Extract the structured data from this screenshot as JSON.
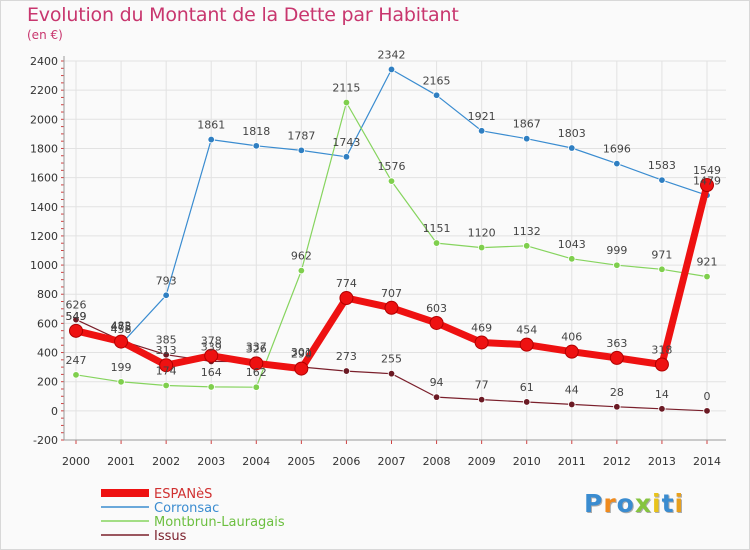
{
  "header": {
    "title": "Evolution du Montant de la Dette par Habitant",
    "subtitle": "(en €)"
  },
  "logo": {
    "text": "Proxiti"
  },
  "colors": {
    "title": "#c8366e",
    "grid": "#e2e2e2",
    "axis": "#999999"
  },
  "chart_data": {
    "type": "line",
    "title": "Evolution du Montant de la Dette par Habitant",
    "subtitle": "(en €)",
    "x": [
      "2000",
      "2001",
      "2002",
      "2003",
      "2004",
      "2005",
      "2006",
      "2007",
      "2008",
      "2009",
      "2010",
      "2011",
      "2012",
      "2013",
      "2014"
    ],
    "ylim": [
      -200,
      2400
    ],
    "yticks": [
      -200,
      0,
      200,
      400,
      600,
      800,
      1000,
      1200,
      1400,
      1600,
      1800,
      2000,
      2200,
      2400
    ],
    "grid": true,
    "legend": "bottom-left",
    "series": [
      {
        "name": "Corronsac",
        "color": "#3a8cd0",
        "point": "#2f7fc2",
        "width": 1.2,
        "values": [
          549,
          458,
          793,
          1861,
          1818,
          1787,
          1743,
          2342,
          2165,
          1921,
          1867,
          1803,
          1696,
          1583,
          1479
        ],
        "labels": [
          "549",
          "458",
          "793",
          "1861",
          "1818",
          "1787",
          "1743",
          "2342",
          "2165",
          "1921",
          "1867",
          "1803",
          "1696",
          "1583",
          "1479"
        ]
      },
      {
        "name": "Montbrun-Lauragais",
        "color": "#86d45e",
        "point": "#7fcf4d",
        "width": 1.2,
        "values": [
          247,
          199,
          174,
          164,
          162,
          962,
          2115,
          1576,
          1151,
          1120,
          1132,
          1043,
          999,
          971,
          921
        ],
        "labels": [
          "247",
          "199",
          "174",
          "164",
          "162",
          "962",
          "2115",
          "1576",
          "1151",
          "1120",
          "1132",
          "1043",
          "999",
          "971",
          "921"
        ]
      },
      {
        "name": "Issus",
        "color": "#7a1f2b",
        "point": "#6b1a24",
        "width": 1.2,
        "values": [
          626,
          482,
          385,
          339,
          337,
          301,
          273,
          255,
          94,
          77,
          61,
          44,
          28,
          14,
          0
        ],
        "labels": [
          "626",
          "482",
          "385",
          "339",
          "337",
          "301",
          "273",
          "255",
          "94",
          "77",
          "61",
          "44",
          "28",
          "14",
          "0"
        ]
      },
      {
        "name": "ESPANèS",
        "color": "#ee1111",
        "point": "#ee1111",
        "width": 7,
        "values": [
          549,
          475,
          313,
          378,
          326,
          290,
          774,
          707,
          603,
          469,
          454,
          406,
          363,
          318,
          1549
        ],
        "labels": [
          "549",
          "475",
          "313",
          "378",
          "326",
          "290",
          "774",
          "707",
          "603",
          "469",
          "454",
          "406",
          "363",
          "318",
          "1549"
        ]
      }
    ],
    "legend_entries": [
      {
        "name": "ESPANèS",
        "color": "#ee1111",
        "text_color": "#d03030",
        "thick": true
      },
      {
        "name": "Corronsac",
        "color": "#3a8cd0",
        "text_color": "#3a8cd0",
        "thick": false
      },
      {
        "name": "Montbrun-Lauragais",
        "color": "#86d45e",
        "text_color": "#6cbf40",
        "thick": false
      },
      {
        "name": "Issus",
        "color": "#7a1f2b",
        "text_color": "#7a1f2b",
        "thick": false
      }
    ]
  }
}
